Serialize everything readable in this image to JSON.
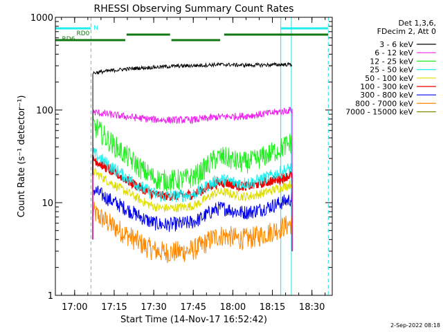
{
  "chart_data": {
    "type": "line",
    "title": "RHESSI Observing Summary Count Rates",
    "xlabel": "Start Time (14-Nov-17 16:52:42)",
    "ylabel": "Count Rate (s⁻¹ detector⁻¹)",
    "y_scale": "log",
    "ylim": [
      1,
      1000
    ],
    "xlim_minutes_after_1652": [
      0,
      105
    ],
    "x_ticks": [
      {
        "minute": 7.3,
        "label": "17:00"
      },
      {
        "minute": 22.3,
        "label": "17:15"
      },
      {
        "minute": 37.3,
        "label": "17:30"
      },
      {
        "minute": 52.3,
        "label": "17:45"
      },
      {
        "minute": 67.3,
        "label": "18:00"
      },
      {
        "minute": 82.3,
        "label": "18:15"
      },
      {
        "minute": 97.3,
        "label": "18:30"
      }
    ],
    "y_ticks": [
      {
        "value": 1,
        "label": "1"
      },
      {
        "value": 10,
        "label": "10"
      },
      {
        "value": 100,
        "label": "100"
      },
      {
        "value": 1000,
        "label": "1000"
      }
    ],
    "data_window_minutes": [
      14.2,
      89.8
    ],
    "legend": {
      "header": [
        "Det 1,3,6,",
        "FDecim 2, Att 0"
      ],
      "placement": "right"
    },
    "series": [
      {
        "name": "3 - 6 keV",
        "color": "#000000",
        "values_start_mid_end": [
          250,
          300,
          310
        ]
      },
      {
        "name": "6 - 12 keV",
        "color": "#ee22ee",
        "values_start_mid_end": [
          95,
          78,
          100
        ]
      },
      {
        "name": "12 - 25 keV",
        "color": "#22ee22",
        "values_start_mid_end": [
          70,
          18,
          45
        ]
      },
      {
        "name": "25 - 50 keV",
        "color": "#22eeee",
        "values_start_mid_end": [
          35,
          12,
          24
        ]
      },
      {
        "name": "50 - 100 keV",
        "color": "#dddd00",
        "values_start_mid_end": [
          22,
          9,
          16
        ]
      },
      {
        "name": "100 - 300 keV",
        "color": "#ee0000",
        "values_start_mid_end": [
          30,
          12,
          20
        ]
      },
      {
        "name": "300 - 800 keV",
        "color": "#0000ee",
        "values_start_mid_end": [
          14,
          6,
          11
        ]
      },
      {
        "name": "800 - 7000 keV",
        "color": "#ff8800",
        "values_start_mid_end": [
          8,
          3,
          6
        ]
      },
      {
        "name": "7000 - 15000 keV",
        "color": "#888800",
        "values_start_mid_end": null
      }
    ],
    "flag_bars": [
      {
        "label": "N",
        "color": "#22eeee",
        "segments_minutes": [
          [
            0,
            13.5
          ],
          [
            85.5,
            103.5
          ]
        ]
      },
      {
        "label": "RD0",
        "color": "#117711",
        "segments_minutes": [
          [
            27,
            43.5
          ],
          [
            64,
            103.5
          ]
        ]
      },
      {
        "label": "RD6",
        "color": "#117711",
        "segments_minutes": [
          [
            0,
            26.5
          ],
          [
            44,
            62.5
          ]
        ]
      }
    ],
    "vertical_markers_minutes": {
      "solid": [
        0,
        85.5,
        89.5
      ],
      "dashed": [
        13.5,
        103.5
      ]
    },
    "timestamp": "2-Sep-2022 08:18"
  }
}
